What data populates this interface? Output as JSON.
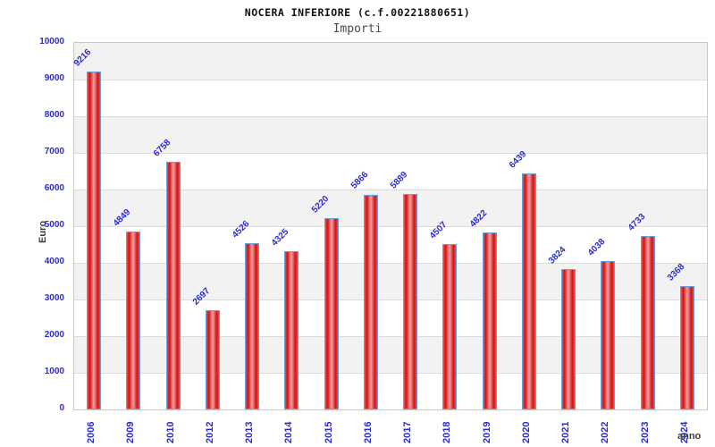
{
  "header": {
    "title": "NOCERA INFERIORE (c.f.00221880651)",
    "subtitle": "Importi"
  },
  "chart_data": {
    "type": "bar",
    "title": "NOCERA INFERIORE (c.f.00221880651)",
    "subtitle": "Importi",
    "categories": [
      "2006",
      "2009",
      "2010",
      "2012",
      "2013",
      "2014",
      "2015",
      "2016",
      "2017",
      "2018",
      "2019",
      "2020",
      "2021",
      "2022",
      "2023",
      "2024"
    ],
    "values": [
      9216,
      4849,
      6758,
      2697,
      4526,
      4325,
      5220,
      5866,
      5889,
      4507,
      4822,
      6439,
      3824,
      4038,
      4733,
      3368
    ],
    "xlabel": "anno",
    "ylabel": "Euro",
    "ylim": [
      0,
      10000
    ],
    "ytick_step": 1000,
    "yticks": [
      0,
      1000,
      2000,
      3000,
      4000,
      5000,
      6000,
      7000,
      8000,
      9000,
      10000
    ],
    "grid": true,
    "legend": "none",
    "colors": {
      "bar_fill": "#cf1212",
      "bar_fill_highlight": "#f5a0a0",
      "bar_border": "#64a0dc",
      "label_text": "#2b2bcb",
      "axis_title_text": "#3d3d3d",
      "title_text": "#111111",
      "subtitle_text": "#4a4a4a",
      "band": "#f2f2f2",
      "gridline": "#dcdcdc",
      "plot_border": "#c9c9c9"
    }
  }
}
